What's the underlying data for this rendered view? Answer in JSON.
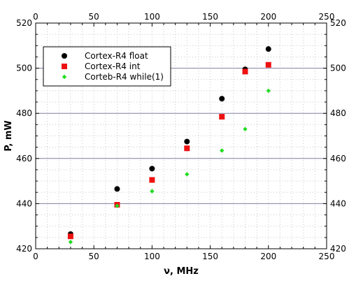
{
  "chart_data": {
    "type": "scatter",
    "title": "",
    "xlabel": "ν, MHz",
    "ylabel": "P, mW",
    "xlim": [
      0,
      250
    ],
    "ylim": [
      420,
      520
    ],
    "x_ticks": [
      "0",
      "50",
      "100",
      "150",
      "200",
      "250"
    ],
    "y_ticks": [
      "420",
      "440",
      "460",
      "480",
      "500",
      "520"
    ],
    "top_axis_ticks": [
      "0",
      "50",
      "100",
      "150",
      "200",
      "250"
    ],
    "right_axis_ticks": [
      "420",
      "440",
      "460",
      "480",
      "500",
      "520"
    ],
    "grid": {
      "major_y": true,
      "minor_dotted": true
    },
    "legend_position": "top-left",
    "series": [
      {
        "name": "Cortex-R4 float",
        "marker": "circle",
        "color": "#000000",
        "x": [
          30,
          70,
          100,
          130,
          160,
          180,
          200
        ],
        "y": [
          426.5,
          446.5,
          455.5,
          467.5,
          486.5,
          499.5,
          508.5
        ]
      },
      {
        "name": "Cortex-R4 int",
        "marker": "square",
        "color": "#ee1111",
        "x": [
          30,
          70,
          100,
          130,
          160,
          180,
          200
        ],
        "y": [
          425.5,
          439.5,
          450.5,
          464.5,
          478.5,
          498.5,
          501.5
        ]
      },
      {
        "name": "Corteb-R4 while(1)",
        "marker": "diamond",
        "color": "#22dd22",
        "x": [
          30,
          70,
          100,
          130,
          160,
          180,
          200
        ],
        "y": [
          423,
          439,
          445.5,
          453,
          463.5,
          473,
          490
        ]
      }
    ]
  }
}
